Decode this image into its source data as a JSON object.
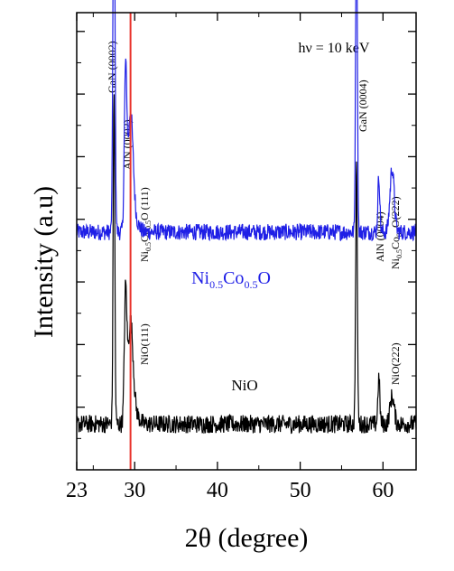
{
  "chart_data": {
    "type": "line",
    "xlabel": "2θ (degree)",
    "ylabel": "Intensity (a.u)",
    "xlim": [
      23,
      64
    ],
    "x_ticks": [
      23,
      30,
      40,
      50,
      60
    ],
    "x_tick_labels": [
      "23",
      "30",
      "40",
      "50",
      "60"
    ],
    "grid": false,
    "legend": "none",
    "inset_text": "hν = 10 keV",
    "reference_line": {
      "x": 29.5,
      "color": "#e8322b"
    },
    "series": [
      {
        "label": "Ni0.5Co0.5O",
        "label_parts": {
          "base1": "Ni",
          "sub1": "0.5",
          "base2": "Co",
          "sub2": "0.5",
          "base3": "O"
        },
        "color": "#1f1fe6",
        "baseline": 0.52,
        "noise": 0.018,
        "peaks": [
          {
            "x": 27.5,
            "height": 0.89,
            "width": 0.12
          },
          {
            "x": 28.9,
            "height": 0.34,
            "width": 0.15
          },
          {
            "x": 29.5,
            "height": 0.24,
            "width": 0.3
          },
          {
            "x": 56.8,
            "height": 0.79,
            "width": 0.1
          },
          {
            "x": 59.5,
            "height": 0.12,
            "width": 0.12
          },
          {
            "x": 61.1,
            "height": 0.14,
            "width": 0.25
          }
        ]
      },
      {
        "label": "NiO",
        "color": "#000000",
        "baseline": 0.1,
        "noise": 0.02,
        "peaks": [
          {
            "x": 27.5,
            "height": 0.73,
            "width": 0.1
          },
          {
            "x": 28.9,
            "height": 0.28,
            "width": 0.15
          },
          {
            "x": 29.5,
            "height": 0.2,
            "width": 0.3
          },
          {
            "x": 56.8,
            "height": 0.58,
            "width": 0.1
          },
          {
            "x": 59.5,
            "height": 0.1,
            "width": 0.12
          },
          {
            "x": 61.1,
            "height": 0.06,
            "width": 0.25
          }
        ]
      }
    ],
    "annotations": {
      "gan0002": "GaN (0002)",
      "aln0002": "AlN (0002)",
      "nico111": {
        "base1": "Ni",
        "sub1": "0.5",
        "base2": "Co",
        "sub2": "0.5",
        "base3": "O (111)"
      },
      "nio111": "NiO(111)",
      "gan0004": "GaN (0004)",
      "aln0004": "AlN (0004)",
      "nico222": {
        "base1": "Ni",
        "sub1": "0.5",
        "base2": "Co",
        "sub2": "0.5",
        "base3": "O(222)"
      },
      "nio222": "NiO(222)"
    }
  }
}
